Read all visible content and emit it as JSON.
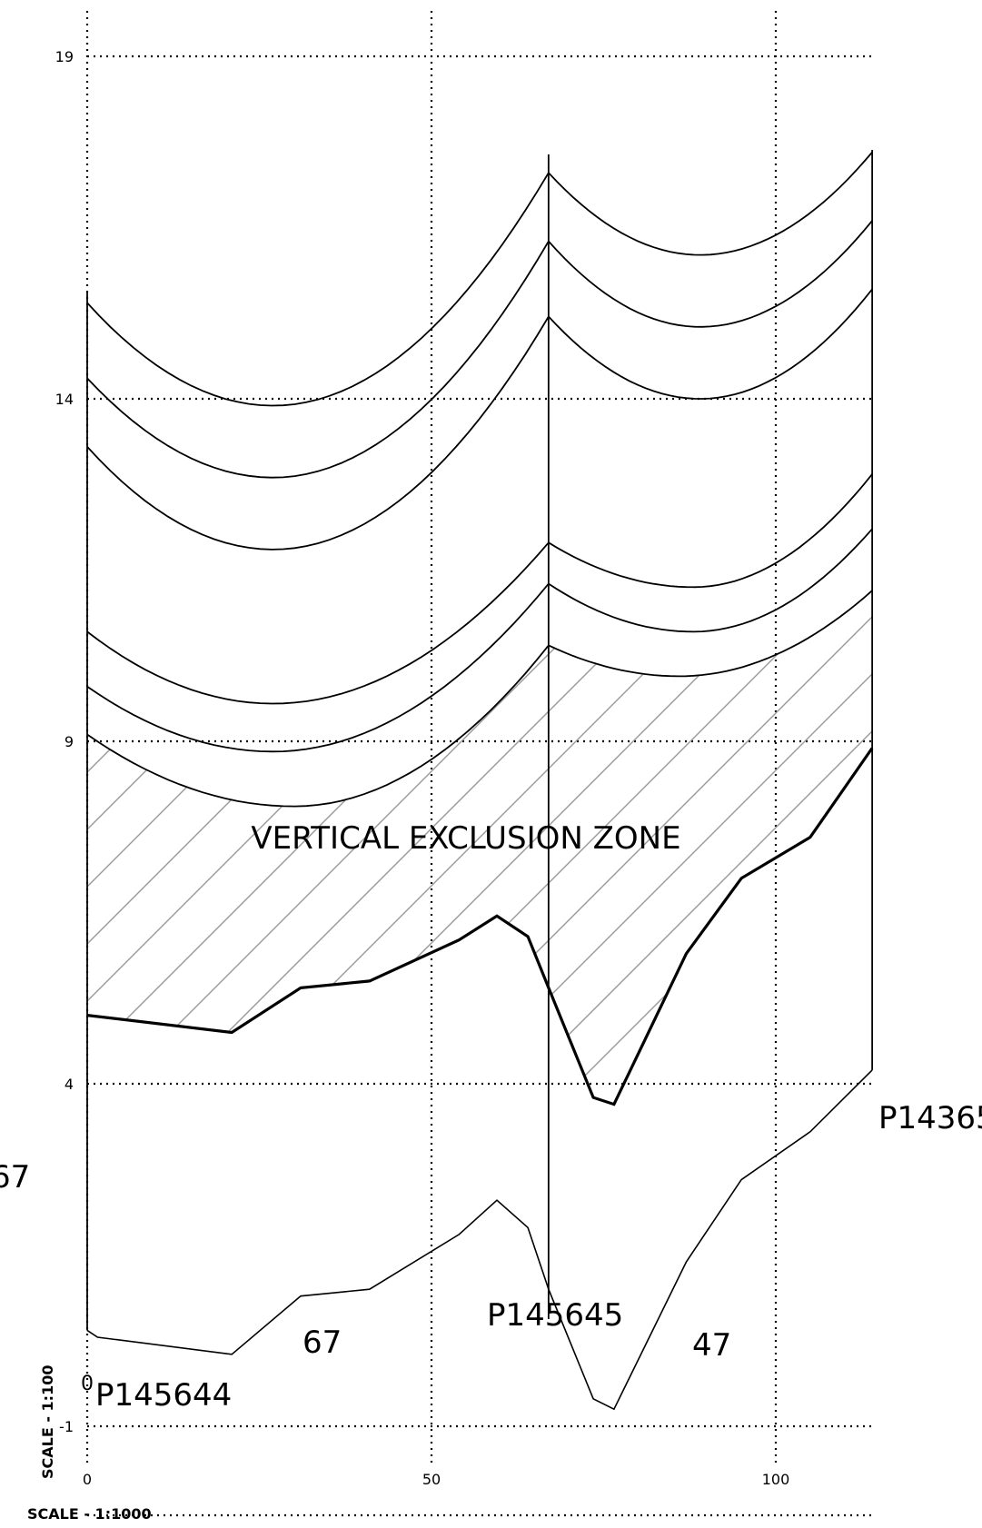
{
  "drawing": {
    "zone_label": "VERTICAL EXCLUSION ZONE",
    "vertical_scale": "SCALE - 1:100",
    "horizontal_scale": "SCALE - 1:1000",
    "x_ticks": [
      "0",
      "50",
      "100"
    ],
    "y_ticks": [
      "19",
      "14",
      "9",
      "4",
      "-1"
    ]
  },
  "poles": [
    {
      "id": "P145644"
    },
    {
      "id": "P145645"
    },
    {
      "id": "P14365"
    }
  ],
  "span_labels": [
    "67",
    "67",
    "47"
  ],
  "zero_mark": "0",
  "chart_data": {
    "type": "line",
    "x_axis_values": [
      0,
      50,
      100
    ],
    "y_axis_values": [
      19,
      14,
      9,
      4,
      -1
    ],
    "xlim": [
      0,
      115
    ],
    "ylim": [
      -2.5,
      19
    ],
    "grid": true,
    "annotations": [
      "VERTICAL EXCLUSION ZONE",
      "SCALE - 1:100",
      "SCALE - 1:1000"
    ],
    "pole_positions_x": [
      0,
      67,
      114
    ],
    "wire_curves": [
      {
        "span": [
          0,
          67
        ],
        "y_start": 15.4,
        "y_low": 13.9,
        "x_low": 27,
        "y_end": 17.3
      },
      {
        "span": [
          0,
          67
        ],
        "y_start": 14.3,
        "y_low": 12.85,
        "x_low": 27,
        "y_end": 16.3
      },
      {
        "span": [
          0,
          67
        ],
        "y_start": 13.3,
        "y_low": 11.8,
        "x_low": 27,
        "y_end": 15.2
      },
      {
        "span": [
          0,
          67
        ],
        "y_start": 10.6,
        "y_low": 9.55,
        "x_low": 27,
        "y_end": 11.9
      },
      {
        "span": [
          0,
          67
        ],
        "y_start": 9.8,
        "y_low": 8.85,
        "x_low": 27,
        "y_end": 11.3
      },
      {
        "span": [
          0,
          67
        ],
        "y_start": 9.1,
        "y_low": 8.05,
        "x_low": 30,
        "y_end": 10.4
      },
      {
        "span": [
          67,
          114
        ],
        "y_start": 17.3,
        "y_low": 16.1,
        "x_low": 89,
        "y_end": 17.6
      },
      {
        "span": [
          67,
          114
        ],
        "y_start": 16.3,
        "y_low": 15.05,
        "x_low": 89,
        "y_end": 16.6
      },
      {
        "span": [
          67,
          114
        ],
        "y_start": 15.2,
        "y_low": 14.0,
        "x_low": 89,
        "y_end": 15.6
      },
      {
        "span": [
          67,
          114
        ],
        "y_start": 11.9,
        "y_low": 11.25,
        "x_low": 88,
        "y_end": 12.9
      },
      {
        "span": [
          67,
          114
        ],
        "y_start": 11.3,
        "y_low": 10.6,
        "x_low": 88,
        "y_end": 12.1
      },
      {
        "span": [
          67,
          114
        ],
        "y_start": 10.4,
        "y_low": 9.95,
        "x_low": 86,
        "y_end": 11.2
      }
    ],
    "lowest_conductor_profile": {
      "x": [
        0,
        21,
        31,
        41,
        54,
        59.5,
        64,
        67,
        73.5,
        76.5,
        87,
        95,
        105,
        114
      ],
      "y": [
        5.0,
        4.75,
        5.4,
        5.5,
        6.1,
        6.45,
        6.15,
        5.4,
        3.8,
        3.7,
        5.9,
        7.0,
        7.6,
        8.9
      ]
    },
    "ground_profile": {
      "x": [
        0,
        1.5,
        21,
        31,
        41,
        54,
        59.5,
        64,
        67,
        73.5,
        76.5,
        87,
        95,
        105,
        114
      ],
      "y": [
        0.4,
        0.3,
        0.05,
        0.9,
        1.0,
        1.8,
        2.3,
        1.9,
        1.0,
        -0.6,
        -0.75,
        1.4,
        2.6,
        3.3,
        4.2
      ]
    }
  }
}
